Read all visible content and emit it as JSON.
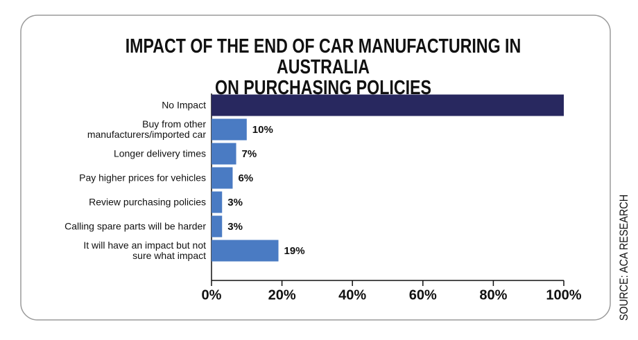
{
  "chart_data": {
    "type": "barh",
    "title": "IMPACT OF THE END OF CAR MANUFACTURING IN AUSTRALIA\nON PURCHASING POLICIES",
    "categories": [
      "No Impact",
      "Buy from other\nmanufacturers/imported car",
      "Longer delivery times",
      "Pay higher prices for vehicles",
      "Review purchasing policies",
      "Calling spare parts will be harder",
      "It will have an impact but not\nsure what impact"
    ],
    "values": [
      100,
      10,
      7,
      6,
      3,
      3,
      19
    ],
    "value_labels": [
      null,
      "10%",
      "7%",
      "6%",
      "3%",
      "3%",
      "19%"
    ],
    "colors": [
      "#28285f",
      "#4a7bc3",
      "#4a7bc3",
      "#4a7bc3",
      "#4a7bc3",
      "#4a7bc3",
      "#4a7bc3"
    ],
    "xlim": [
      0,
      100
    ],
    "xticks": [
      {
        "value": 0,
        "label": "0%"
      },
      {
        "value": 20,
        "label": "20%"
      },
      {
        "value": 40,
        "label": "40%"
      },
      {
        "value": 60,
        "label": "60%"
      },
      {
        "value": 80,
        "label": "80%"
      },
      {
        "value": 100,
        "label": "100%"
      }
    ],
    "source": "SOURCE: ACA RESEARCH"
  }
}
